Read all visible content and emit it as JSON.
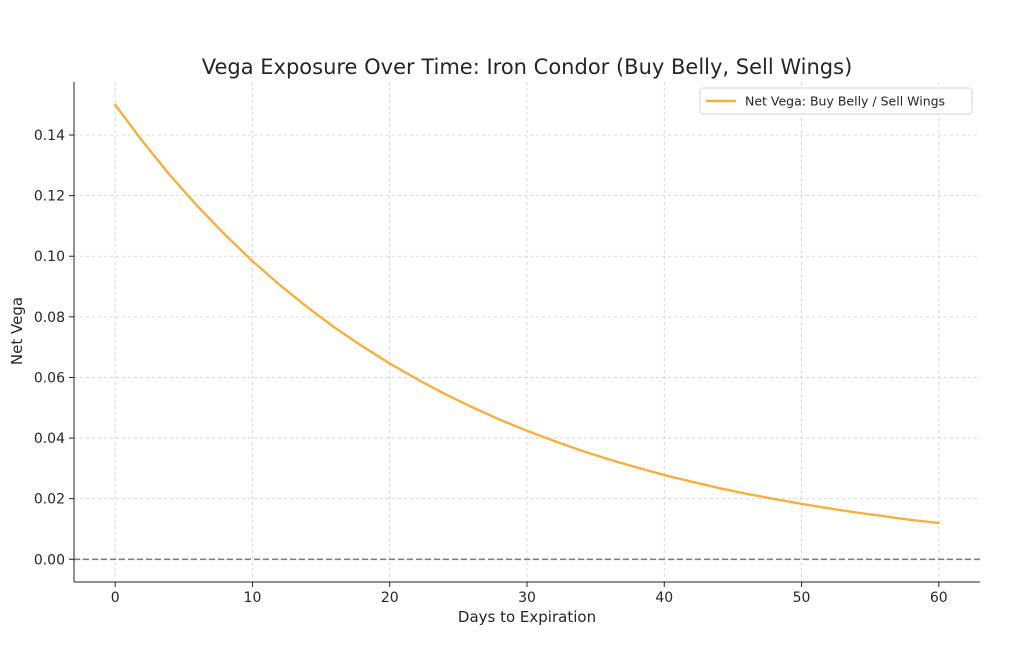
{
  "chart_data": {
    "type": "line",
    "title": "Vega Exposure Over Time: Iron Condor (Buy Belly, Sell Wings)",
    "xlabel": "Days to Expiration",
    "ylabel": "Net Vega",
    "xlim": [
      -3,
      63
    ],
    "ylim": [
      -0.0075,
      0.1575
    ],
    "xticks": [
      0,
      10,
      20,
      30,
      40,
      50,
      60
    ],
    "xtick_labels": [
      "0",
      "10",
      "20",
      "30",
      "40",
      "50",
      "60"
    ],
    "yticks": [
      0.0,
      0.02,
      0.04,
      0.06,
      0.08,
      0.1,
      0.12,
      0.14
    ],
    "ytick_labels": [
      "0.00",
      "0.02",
      "0.04",
      "0.06",
      "0.08",
      "0.10",
      "0.12",
      "0.14"
    ],
    "grid": true,
    "legend_position": "top-right",
    "reference_line": {
      "y": 0.0,
      "style": "dashed",
      "color": "#808080"
    },
    "series": [
      {
        "name": "Net Vega: Buy Belly / Sell Wings",
        "color": "#f5b041",
        "x": [
          0,
          2,
          4,
          6,
          8,
          10,
          12,
          14,
          16,
          18,
          20,
          22,
          24,
          26,
          28,
          30,
          32,
          34,
          36,
          38,
          40,
          42,
          44,
          46,
          48,
          50,
          52,
          54,
          56,
          58,
          60
        ],
        "y": [
          0.15,
          0.1379,
          0.1267,
          0.1165,
          0.1071,
          0.0984,
          0.0905,
          0.0832,
          0.0764,
          0.0703,
          0.0646,
          0.0594,
          0.0546,
          0.0502,
          0.0461,
          0.0424,
          0.039,
          0.0358,
          0.0329,
          0.0303,
          0.0278,
          0.0256,
          0.0235,
          0.0216,
          0.0199,
          0.0183,
          0.0168,
          0.0154,
          0.0142,
          0.013,
          0.012
        ]
      }
    ]
  }
}
